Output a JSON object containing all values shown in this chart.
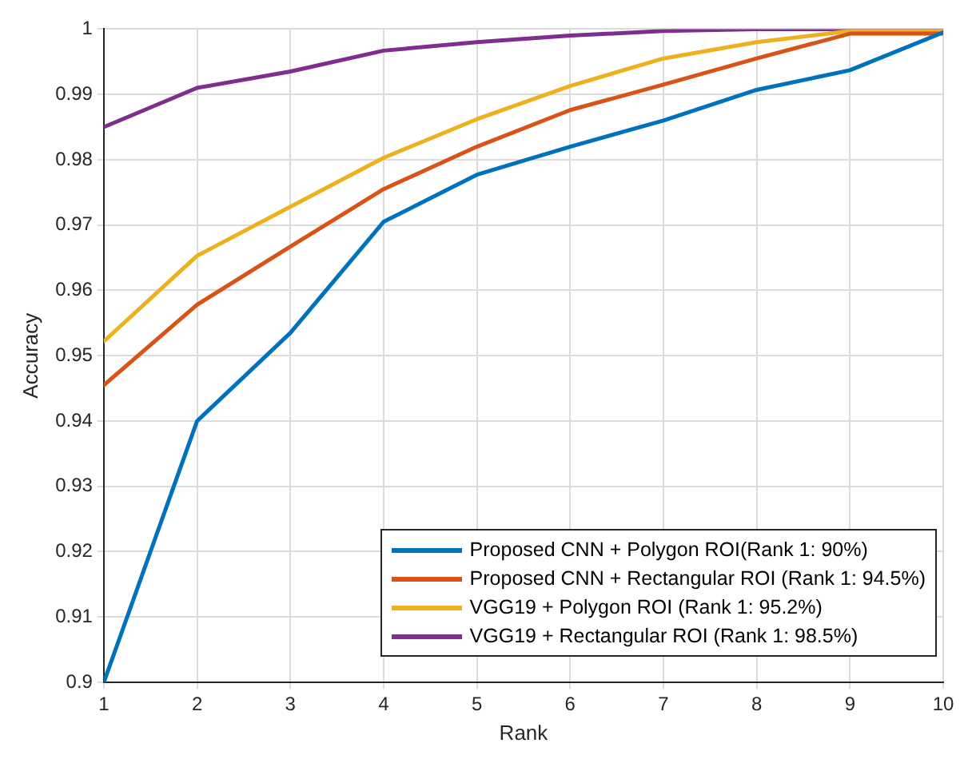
{
  "chart_data": {
    "type": "line",
    "xlabel": "Rank",
    "ylabel": "Accuracy",
    "x": [
      1,
      2,
      3,
      4,
      5,
      6,
      7,
      8,
      9,
      10
    ],
    "xlim": [
      1,
      10
    ],
    "xticks": [
      1,
      2,
      3,
      4,
      5,
      6,
      7,
      8,
      9,
      10
    ],
    "ylim": [
      0.9,
      1
    ],
    "yticks": [
      0.9,
      0.91,
      0.92,
      0.93,
      0.94,
      0.95,
      0.96,
      0.97,
      0.98,
      0.99,
      1
    ],
    "grid": true,
    "legend": "bottom right",
    "marker": "none",
    "line_style": "solid",
    "series": [
      {
        "name": "Proposed CNN + Polygon ROI(Rank 1: 90%)",
        "color": "#0072bd",
        "values": [
          0.9,
          0.94,
          0.9535,
          0.9705,
          0.9777,
          0.982,
          0.986,
          0.9907,
          0.9937,
          0.9995
        ]
      },
      {
        "name": "Proposed CNN + Rectangular ROI (Rank 1: 94.5%)",
        "color": "#d95319",
        "values": [
          0.9455,
          0.9578,
          0.9667,
          0.9755,
          0.982,
          0.9876,
          0.9915,
          0.9955,
          0.9993,
          0.9993
        ]
      },
      {
        "name": "VGG19 + Polygon ROI (Rank 1: 95.2%)",
        "color": "#edb120",
        "values": [
          0.9522,
          0.9653,
          0.9728,
          0.9803,
          0.9862,
          0.9913,
          0.9955,
          0.998,
          0.9997,
          0.9997
        ]
      },
      {
        "name": "VGG19 + Rectangular ROI (Rank 1: 98.5%)",
        "color": "#7e2f8e",
        "values": [
          0.985,
          0.991,
          0.9935,
          0.9967,
          0.998,
          0.999,
          0.9997,
          1,
          1,
          1
        ]
      }
    ]
  }
}
